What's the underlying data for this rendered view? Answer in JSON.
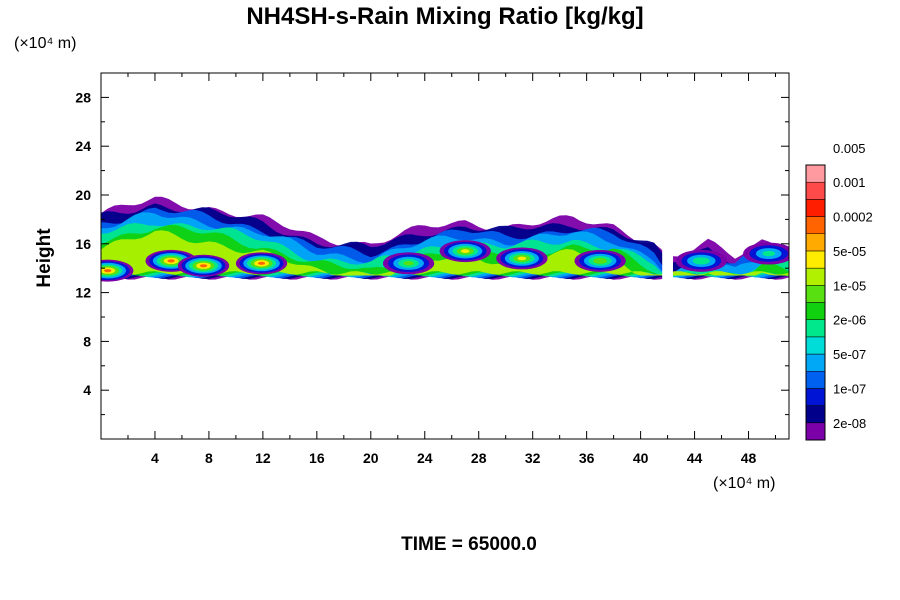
{
  "chart_data": {
    "type": "heatmap",
    "title": "NH4SH-s-Rain Mixing Ratio [kg/kg]",
    "ylabel": "Height",
    "x_unit_label": "(×10⁴ m)",
    "y_unit_label": "(×10⁴ m)",
    "xlim": [
      0,
      51
    ],
    "ylim": [
      0,
      30
    ],
    "x_ticks": [
      4,
      8,
      12,
      16,
      20,
      24,
      28,
      32,
      36,
      40,
      44,
      48
    ],
    "y_ticks": [
      4,
      8,
      12,
      16,
      20,
      24,
      28
    ],
    "time_label": "TIME = 65000.0",
    "legend": {
      "placement": "right",
      "colors": [
        "#7b00a8",
        "#00008b",
        "#0014d6",
        "#0060f0",
        "#00a8f5",
        "#00dcd8",
        "#00e88c",
        "#10d010",
        "#58e010",
        "#b0f000",
        "#ffec00",
        "#ffaa00",
        "#ff6400",
        "#ff1e00",
        "#ff4a4a",
        "#ff9aa0"
      ],
      "labels": [
        "2e-08",
        "1e-07",
        "5e-07",
        "2e-06",
        "1e-05",
        "5e-05",
        "0.0002",
        "0.001",
        "0.005"
      ]
    },
    "field": {
      "description_x_units": "×10⁴ m",
      "base_height": 13.2,
      "top_height_by_x": [
        [
          0,
          18.5
        ],
        [
          4,
          19.6
        ],
        [
          8,
          19.0
        ],
        [
          12,
          18.0
        ],
        [
          16,
          16.5
        ],
        [
          20,
          16.0
        ],
        [
          24,
          17.3
        ],
        [
          27,
          17.8
        ],
        [
          30,
          17.4
        ],
        [
          35,
          18.0
        ],
        [
          38,
          17.5
        ],
        [
          41,
          16.0
        ],
        [
          42,
          14.8
        ],
        [
          43,
          15.0
        ],
        [
          45,
          16.0
        ],
        [
          46,
          15.5
        ],
        [
          47,
          15.0
        ],
        [
          49,
          16.3
        ],
        [
          51,
          16.0
        ]
      ],
      "blobs": [
        {
          "x": 0.5,
          "y": 13.8,
          "level": 12
        },
        {
          "x": 5.2,
          "y": 14.6,
          "level": 12
        },
        {
          "x": 7.6,
          "y": 14.2,
          "level": 12
        },
        {
          "x": 11.9,
          "y": 14.4,
          "level": 12
        },
        {
          "x": 27.0,
          "y": 15.4,
          "level": 10
        },
        {
          "x": 31.2,
          "y": 14.8,
          "level": 10
        },
        {
          "x": 37.0,
          "y": 14.6,
          "level": 9
        },
        {
          "x": 22.8,
          "y": 14.4,
          "level": 8
        },
        {
          "x": 44.5,
          "y": 14.6,
          "level": 7
        },
        {
          "x": 49.5,
          "y": 15.2,
          "level": 6
        }
      ]
    }
  }
}
